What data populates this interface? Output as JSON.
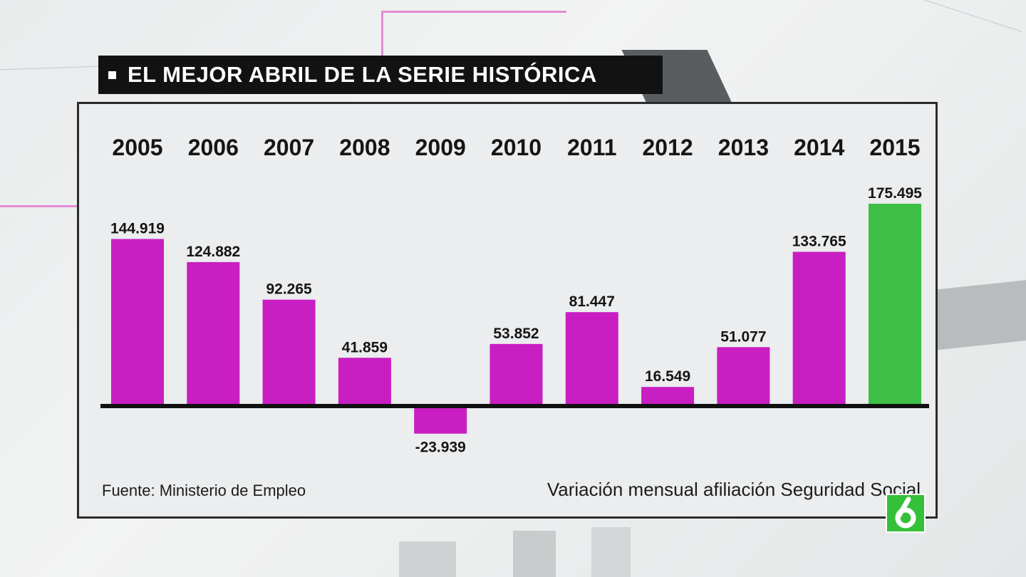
{
  "banner": {
    "title": "EL MEJOR ABRIL DE LA SERIE HISTÓRICA"
  },
  "source": "Fuente: Ministerio de Empleo",
  "footnote": "Variación mensual afiliación Seguridad Social",
  "logo": {
    "icon": "la-sexta-logo-icon",
    "color": "#35c03a"
  },
  "colors": {
    "bar": "#c81ec2",
    "highlight": "#3dc045",
    "axis": "#111111"
  },
  "chart_data": {
    "type": "bar",
    "categories": [
      "2005",
      "2006",
      "2007",
      "2008",
      "2009",
      "2010",
      "2011",
      "2012",
      "2013",
      "2014",
      "2015"
    ],
    "values": [
      144919,
      124882,
      92265,
      41859,
      -23939,
      53852,
      81447,
      16549,
      51077,
      133765,
      175495
    ],
    "labels": [
      "144.919",
      "124.882",
      "92.265",
      "41.859",
      "-23.939",
      "53.852",
      "81.447",
      "16.549",
      "51.077",
      "133.765",
      "175.495"
    ],
    "highlight_category": "2015",
    "ylim": [
      -30000,
      200000
    ],
    "grid": false,
    "legend": "none"
  }
}
